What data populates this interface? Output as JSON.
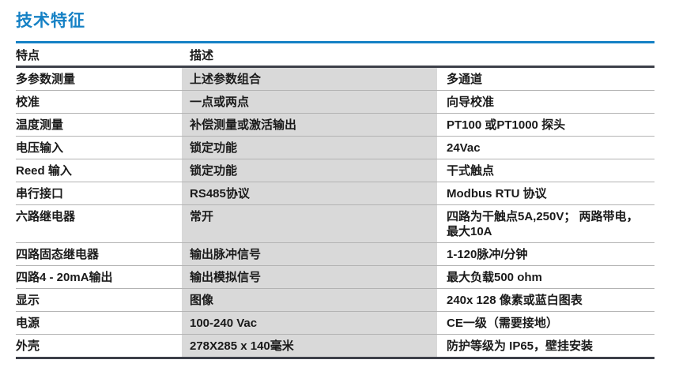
{
  "page_title": "技术特征",
  "colors": {
    "accent_blue": "#1581c5",
    "header_rule": "#3d4049",
    "row_divider": "#b3b3b3",
    "description_band": "#d9d9d9"
  },
  "table": {
    "headers": [
      "特点",
      "描述"
    ],
    "rows": [
      {
        "feature": "多参数测量",
        "description": "上述参数组合",
        "value": "多通道"
      },
      {
        "feature": "校准",
        "description": "一点或两点",
        "value": "向导校准"
      },
      {
        "feature": "温度测量",
        "description": "补偿测量或激活输出",
        "value": "PT100 或PT1000 探头"
      },
      {
        "feature": "电压输入",
        "description": " 锁定功能",
        "value": "24Vac"
      },
      {
        "feature": "Reed 输入",
        "description": "锁定功能",
        "value": "干式触点"
      },
      {
        "feature": "串行接口",
        "description": " RS485协议",
        "value": "Modbus RTU 协议"
      },
      {
        "feature": "六路继电器",
        "description": "常开",
        "value": "四路为干触点5A,250V； 两路带电，\n最大10A"
      },
      {
        "feature": " 四路固态继电器",
        "description": "输出脉冲信号",
        "value": "1-120脉冲/分钟"
      },
      {
        "feature": "四路4 - 20mA输出",
        "description": "输出模拟信号",
        "value": "最大负载500 ohm"
      },
      {
        "feature": "显示",
        "description": "图像",
        "value": "240x 128 像素或蓝白图表"
      },
      {
        "feature": "电源",
        "description": "100-240 Vac",
        "value": "CE一级（需要接地）"
      },
      {
        "feature": "外壳",
        "description": "278X285 x 140毫米",
        "value": "防护等级为 IP65，壁挂安装"
      }
    ]
  }
}
